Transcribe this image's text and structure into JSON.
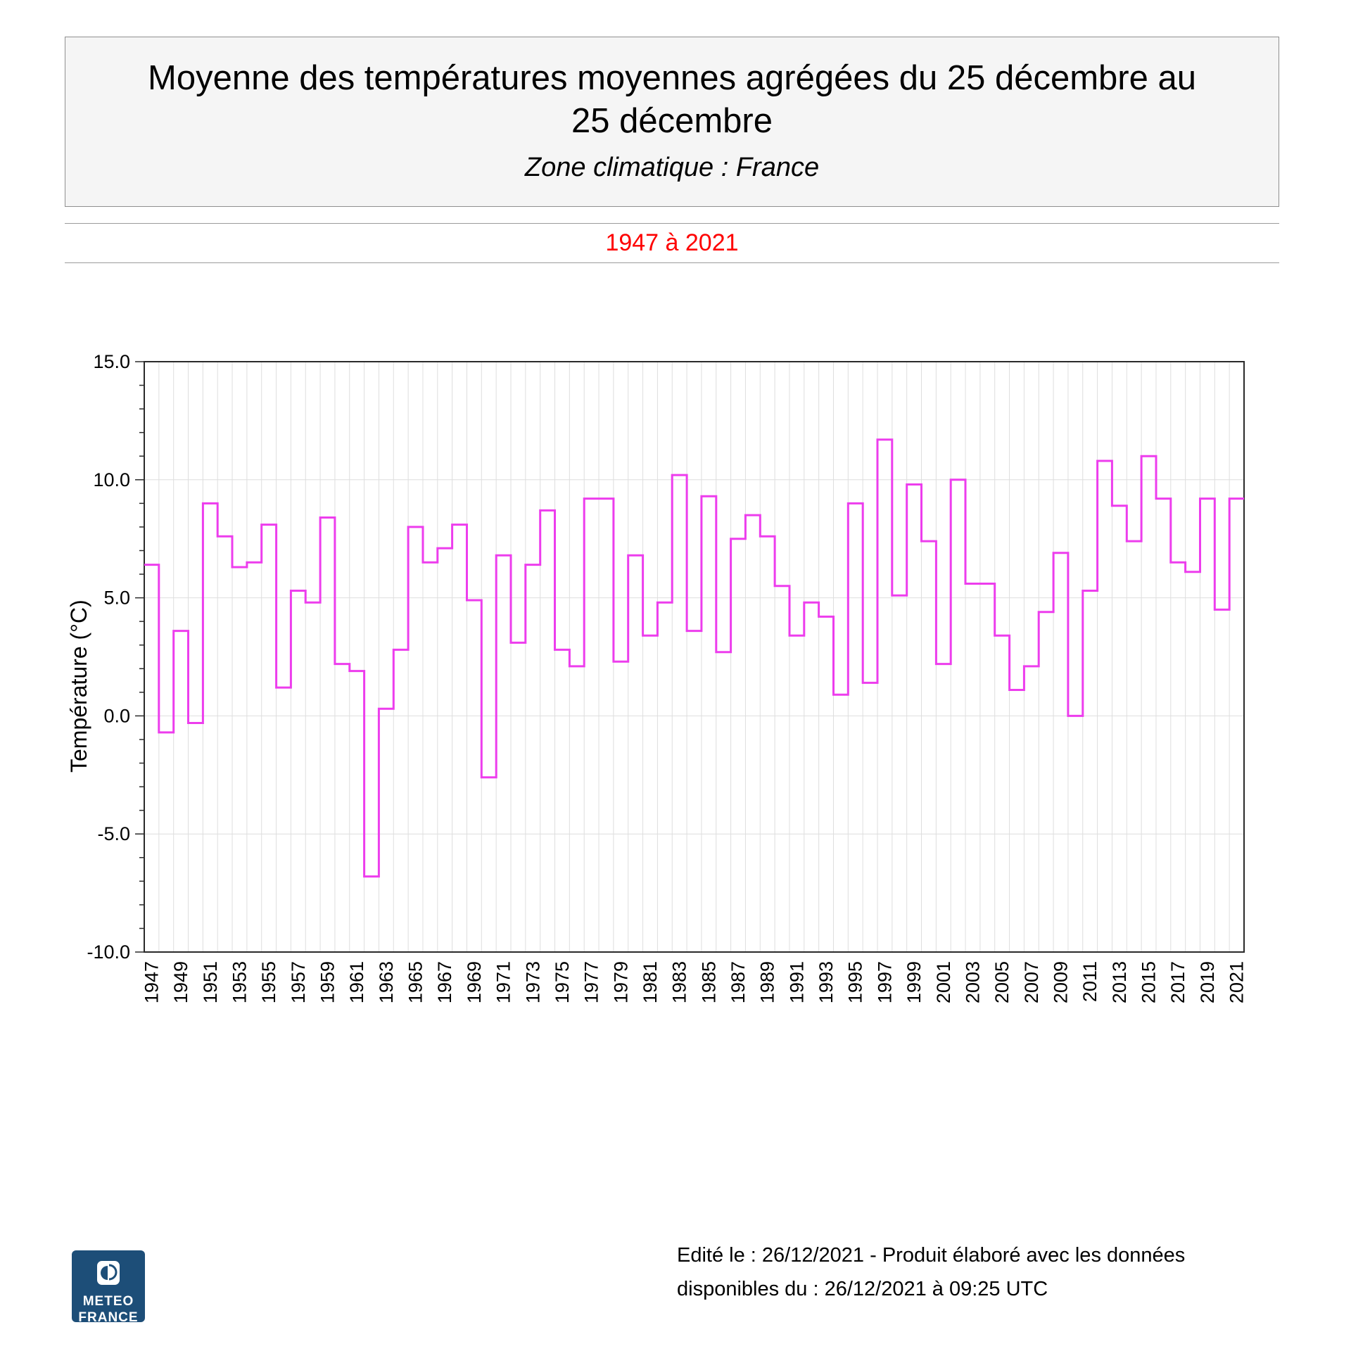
{
  "header": {
    "title_lines": [
      "Moyenne des températures moyennes agrégées du 25 décembre au",
      "25 décembre"
    ],
    "subtitle": "Zone climatique : France"
  },
  "period": {
    "label": "1947 à 2021",
    "color": "#fe0000"
  },
  "chart_data": {
    "type": "line",
    "subtype": "step",
    "title": "",
    "xlabel": "",
    "ylabel": "Température (°C)",
    "ylim": [
      -10,
      15
    ],
    "ytick_labels": [
      "15.0",
      "10.0",
      "5.0",
      "0.0",
      "-5.0",
      "-10.0"
    ],
    "yticks": [
      15,
      10,
      5,
      0,
      -5,
      -10
    ],
    "grid": true,
    "legend_position": "none",
    "line_color": "#ed3ded",
    "xtick_labels": [
      "1947",
      "1949",
      "1951",
      "1953",
      "1955",
      "1957",
      "1959",
      "1961",
      "1963",
      "1965",
      "1967",
      "1969",
      "1971",
      "1973",
      "1975",
      "1977",
      "1979",
      "1981",
      "1983",
      "1985",
      "1987",
      "1989",
      "1991",
      "1993",
      "1995",
      "1997",
      "1999",
      "2001",
      "2003",
      "2005",
      "2007",
      "2009",
      "2011",
      "2013",
      "2015",
      "2017",
      "2019",
      "2021"
    ],
    "years": [
      1947,
      1948,
      1949,
      1950,
      1951,
      1952,
      1953,
      1954,
      1955,
      1956,
      1957,
      1958,
      1959,
      1960,
      1961,
      1962,
      1963,
      1964,
      1965,
      1966,
      1967,
      1968,
      1969,
      1970,
      1971,
      1972,
      1973,
      1974,
      1975,
      1976,
      1977,
      1978,
      1979,
      1980,
      1981,
      1982,
      1983,
      1984,
      1985,
      1986,
      1987,
      1988,
      1989,
      1990,
      1991,
      1992,
      1993,
      1994,
      1995,
      1996,
      1997,
      1998,
      1999,
      2000,
      2001,
      2002,
      2003,
      2004,
      2005,
      2006,
      2007,
      2008,
      2009,
      2010,
      2011,
      2012,
      2013,
      2014,
      2015,
      2016,
      2017,
      2018,
      2019,
      2020,
      2021
    ],
    "values": [
      6.4,
      -0.7,
      3.6,
      -0.3,
      9.0,
      7.6,
      6.3,
      6.5,
      8.1,
      1.2,
      5.3,
      4.8,
      8.4,
      2.2,
      1.9,
      -6.8,
      0.3,
      2.8,
      8.0,
      6.5,
      7.1,
      8.1,
      4.9,
      -2.6,
      6.8,
      3.1,
      6.4,
      8.7,
      2.8,
      2.1,
      9.2,
      9.2,
      2.3,
      6.8,
      3.4,
      4.8,
      10.2,
      3.6,
      9.3,
      2.7,
      7.5,
      8.5,
      7.6,
      5.5,
      3.4,
      4.8,
      4.2,
      0.9,
      9.0,
      1.4,
      11.7,
      5.1,
      9.8,
      7.4,
      2.2,
      10.0,
      5.6,
      5.6,
      3.4,
      1.1,
      2.1,
      4.4,
      6.9,
      0.0,
      5.3,
      10.8,
      8.9,
      7.4,
      11.0,
      9.2,
      6.5,
      6.1,
      9.2,
      4.5,
      9.2
    ]
  },
  "footer": {
    "lines": [
      "Edité le : 26/12/2021 - Produit élaboré avec les données",
      "disponibles du : 26/12/2021 à 09:25 UTC"
    ]
  },
  "logo": {
    "text_lines": [
      "METEO",
      "FRANCE"
    ],
    "bg_color": "#1d4e78"
  }
}
